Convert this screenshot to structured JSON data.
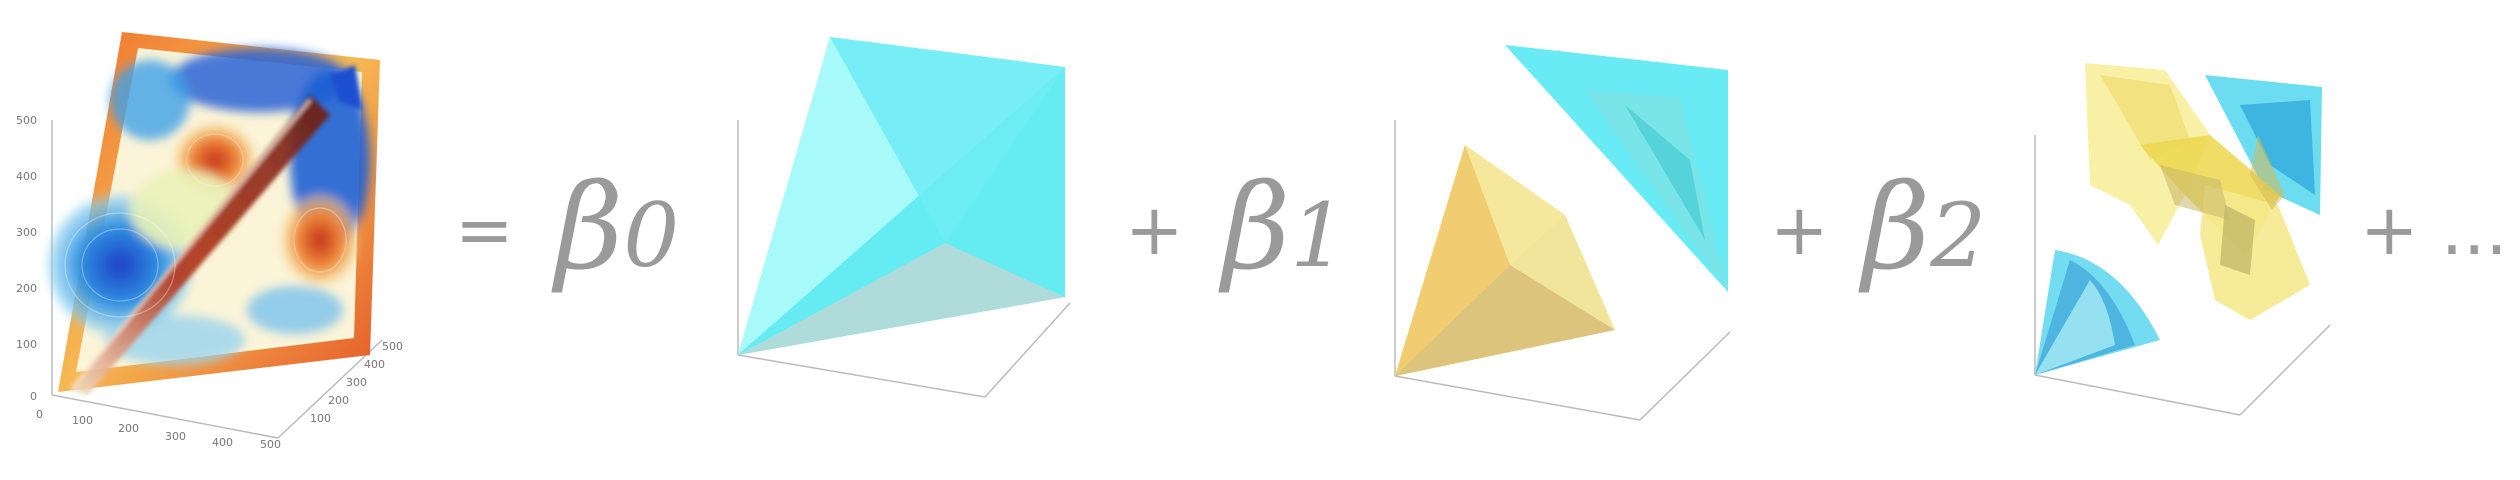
{
  "equation": {
    "equals": "=",
    "plus": "+",
    "ellipsis": "+ ...",
    "beta_symbol": "β",
    "beta_0_index": "0",
    "beta_1_index": "1",
    "beta_2_index": "2"
  },
  "field_plot": {
    "y_ticks": [
      "500",
      "400",
      "300",
      "200",
      "100",
      "0"
    ],
    "x_ticks": [
      "0",
      "100",
      "200",
      "300",
      "400",
      "500"
    ],
    "z_ticks": [
      "100",
      "200",
      "300",
      "400",
      "500"
    ]
  },
  "colors": {
    "text": "#9a9a9a",
    "cyan": "#5ff0f5",
    "yellow": "#f4e37a",
    "blue": "#2e7dd8",
    "red": "#e05a20"
  }
}
